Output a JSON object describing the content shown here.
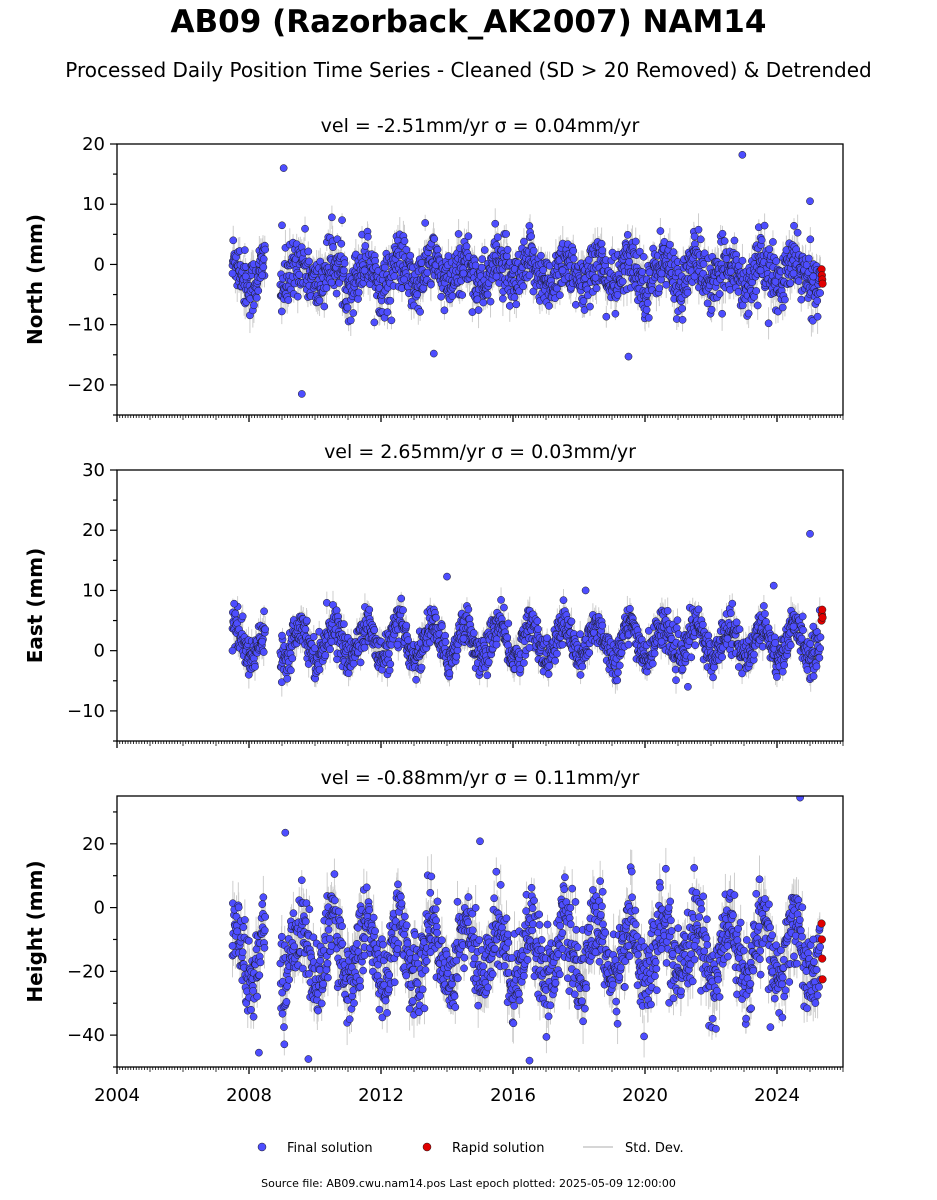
{
  "title": "AB09 (Razorback_AK2007) NAM14",
  "subtitle": "Processed Daily Position Time Series - Cleaned (SD > 20 Removed) & Detrended",
  "source_note": "Source file: AB09.cwu.nam14.pos  Last epoch plotted: 2025-05-09 12:00:00",
  "colors": {
    "final": "#4d4dff",
    "rapid": "#e00000",
    "stddev": "#c8c8c8",
    "edge": "#1a1a1a"
  },
  "chart_data": {
    "type": "scatter",
    "x_axis": {
      "unit": "year",
      "ticks": [
        2004,
        2008,
        2012,
        2016,
        2020,
        2024
      ],
      "range": [
        2004.0,
        2026.0
      ]
    },
    "legend": {
      "placement": "bottom-center",
      "entries": [
        "Final solution",
        "Rapid solution",
        "Std. Dev."
      ]
    },
    "panels": [
      {
        "title": "vel = -2.51mm/yr   σ = 0.04mm/yr",
        "ylabel": "North (mm)",
        "ylim": [
          -25,
          20
        ],
        "yticks": [
          20,
          10,
          0,
          -10,
          -20
        ],
        "series": [
          {
            "name": "Final solution",
            "approx_points": [
              [
                2007.5,
                -1.5
              ],
              [
                2007.9,
                -2.0
              ],
              [
                2008.4,
                -1.8
              ],
              [
                2009.0,
                6.5
              ],
              [
                2009.05,
                16.0
              ],
              [
                2009.6,
                -21.5
              ],
              [
                2010.5,
                -3.0
              ],
              [
                2011.5,
                -1.0
              ],
              [
                2012.7,
                -2.5
              ],
              [
                2013.6,
                -14.8
              ],
              [
                2014.5,
                -1.5
              ],
              [
                2015.5,
                -2.0
              ],
              [
                2016.5,
                -1.8
              ],
              [
                2017.5,
                -1.0
              ],
              [
                2018.5,
                -2.2
              ],
              [
                2019.5,
                -15.3
              ],
              [
                2020.5,
                -1.5
              ],
              [
                2021.5,
                -2.0
              ],
              [
                2022.6,
                -1.2
              ],
              [
                2022.95,
                18.2
              ],
              [
                2023.5,
                -1.0
              ],
              [
                2024.5,
                -1.5
              ],
              [
                2025.0,
                10.5
              ],
              [
                2025.1,
                -2.0
              ]
            ]
          },
          {
            "name": "Rapid solution",
            "approx_points": [
              [
                2025.35,
                -0.8
              ],
              [
                2025.36,
                -1.8
              ],
              [
                2025.37,
                -2.5
              ],
              [
                2025.38,
                -3.2
              ]
            ]
          }
        ]
      },
      {
        "title": "vel = 2.65mm/yr   σ = 0.03mm/yr",
        "ylabel": "East (mm)",
        "ylim": [
          -15,
          30
        ],
        "yticks": [
          30,
          20,
          10,
          0,
          -10
        ],
        "series": [
          {
            "name": "Final solution",
            "approx_points": [
              [
                2007.5,
                0.0
              ],
              [
                2007.55,
                7.8
              ],
              [
                2008.4,
                1.5
              ],
              [
                2009.0,
                2.5
              ],
              [
                2010.5,
                1.5
              ],
              [
                2011.5,
                0.5
              ],
              [
                2012.5,
                1.0
              ],
              [
                2014.0,
                12.3
              ],
              [
                2014.5,
                2.0
              ],
              [
                2015.5,
                1.0
              ],
              [
                2016.5,
                0.5
              ],
              [
                2017.5,
                1.0
              ],
              [
                2018.2,
                10.0
              ],
              [
                2019.5,
                1.0
              ],
              [
                2020.5,
                1.5
              ],
              [
                2021.3,
                -6.0
              ],
              [
                2022.5,
                2.0
              ],
              [
                2023.9,
                10.8
              ],
              [
                2024.5,
                4.0
              ],
              [
                2025.0,
                19.4
              ],
              [
                2025.1,
                4.0
              ]
            ]
          },
          {
            "name": "Rapid solution",
            "approx_points": [
              [
                2025.35,
                5.0
              ],
              [
                2025.36,
                6.0
              ],
              [
                2025.37,
                6.8
              ],
              [
                2025.38,
                5.5
              ]
            ]
          }
        ]
      },
      {
        "title": "vel = -0.88mm/yr   σ = 0.11mm/yr",
        "ylabel": "Height (mm)",
        "ylim": [
          -50,
          35
        ],
        "yticks": [
          20,
          0,
          -20,
          -40
        ],
        "series": [
          {
            "name": "Final solution",
            "approx_points": [
              [
                2007.5,
                -12.0
              ],
              [
                2008.3,
                -45.5
              ],
              [
                2009.1,
                23.5
              ],
              [
                2009.8,
                -47.5
              ],
              [
                2010.5,
                -12.0
              ],
              [
                2011.5,
                -15.0
              ],
              [
                2012.5,
                -13.0
              ],
              [
                2013.5,
                -14.0
              ],
              [
                2015.0,
                20.8
              ],
              [
                2016.5,
                -48.0
              ],
              [
                2017.5,
                -13.0
              ],
              [
                2018.5,
                -14.0
              ],
              [
                2019.5,
                -12.0
              ],
              [
                2020.5,
                -13.0
              ],
              [
                2021.5,
                -12.0
              ],
              [
                2022.5,
                -12.0
              ],
              [
                2023.8,
                -37.5
              ],
              [
                2024.7,
                34.5
              ],
              [
                2025.1,
                -10.0
              ]
            ]
          },
          {
            "name": "Rapid solution",
            "approx_points": [
              [
                2025.35,
                -5.0
              ],
              [
                2025.36,
                -10.0
              ],
              [
                2025.37,
                -16.0
              ],
              [
                2025.38,
                -22.5
              ]
            ]
          }
        ]
      }
    ]
  }
}
